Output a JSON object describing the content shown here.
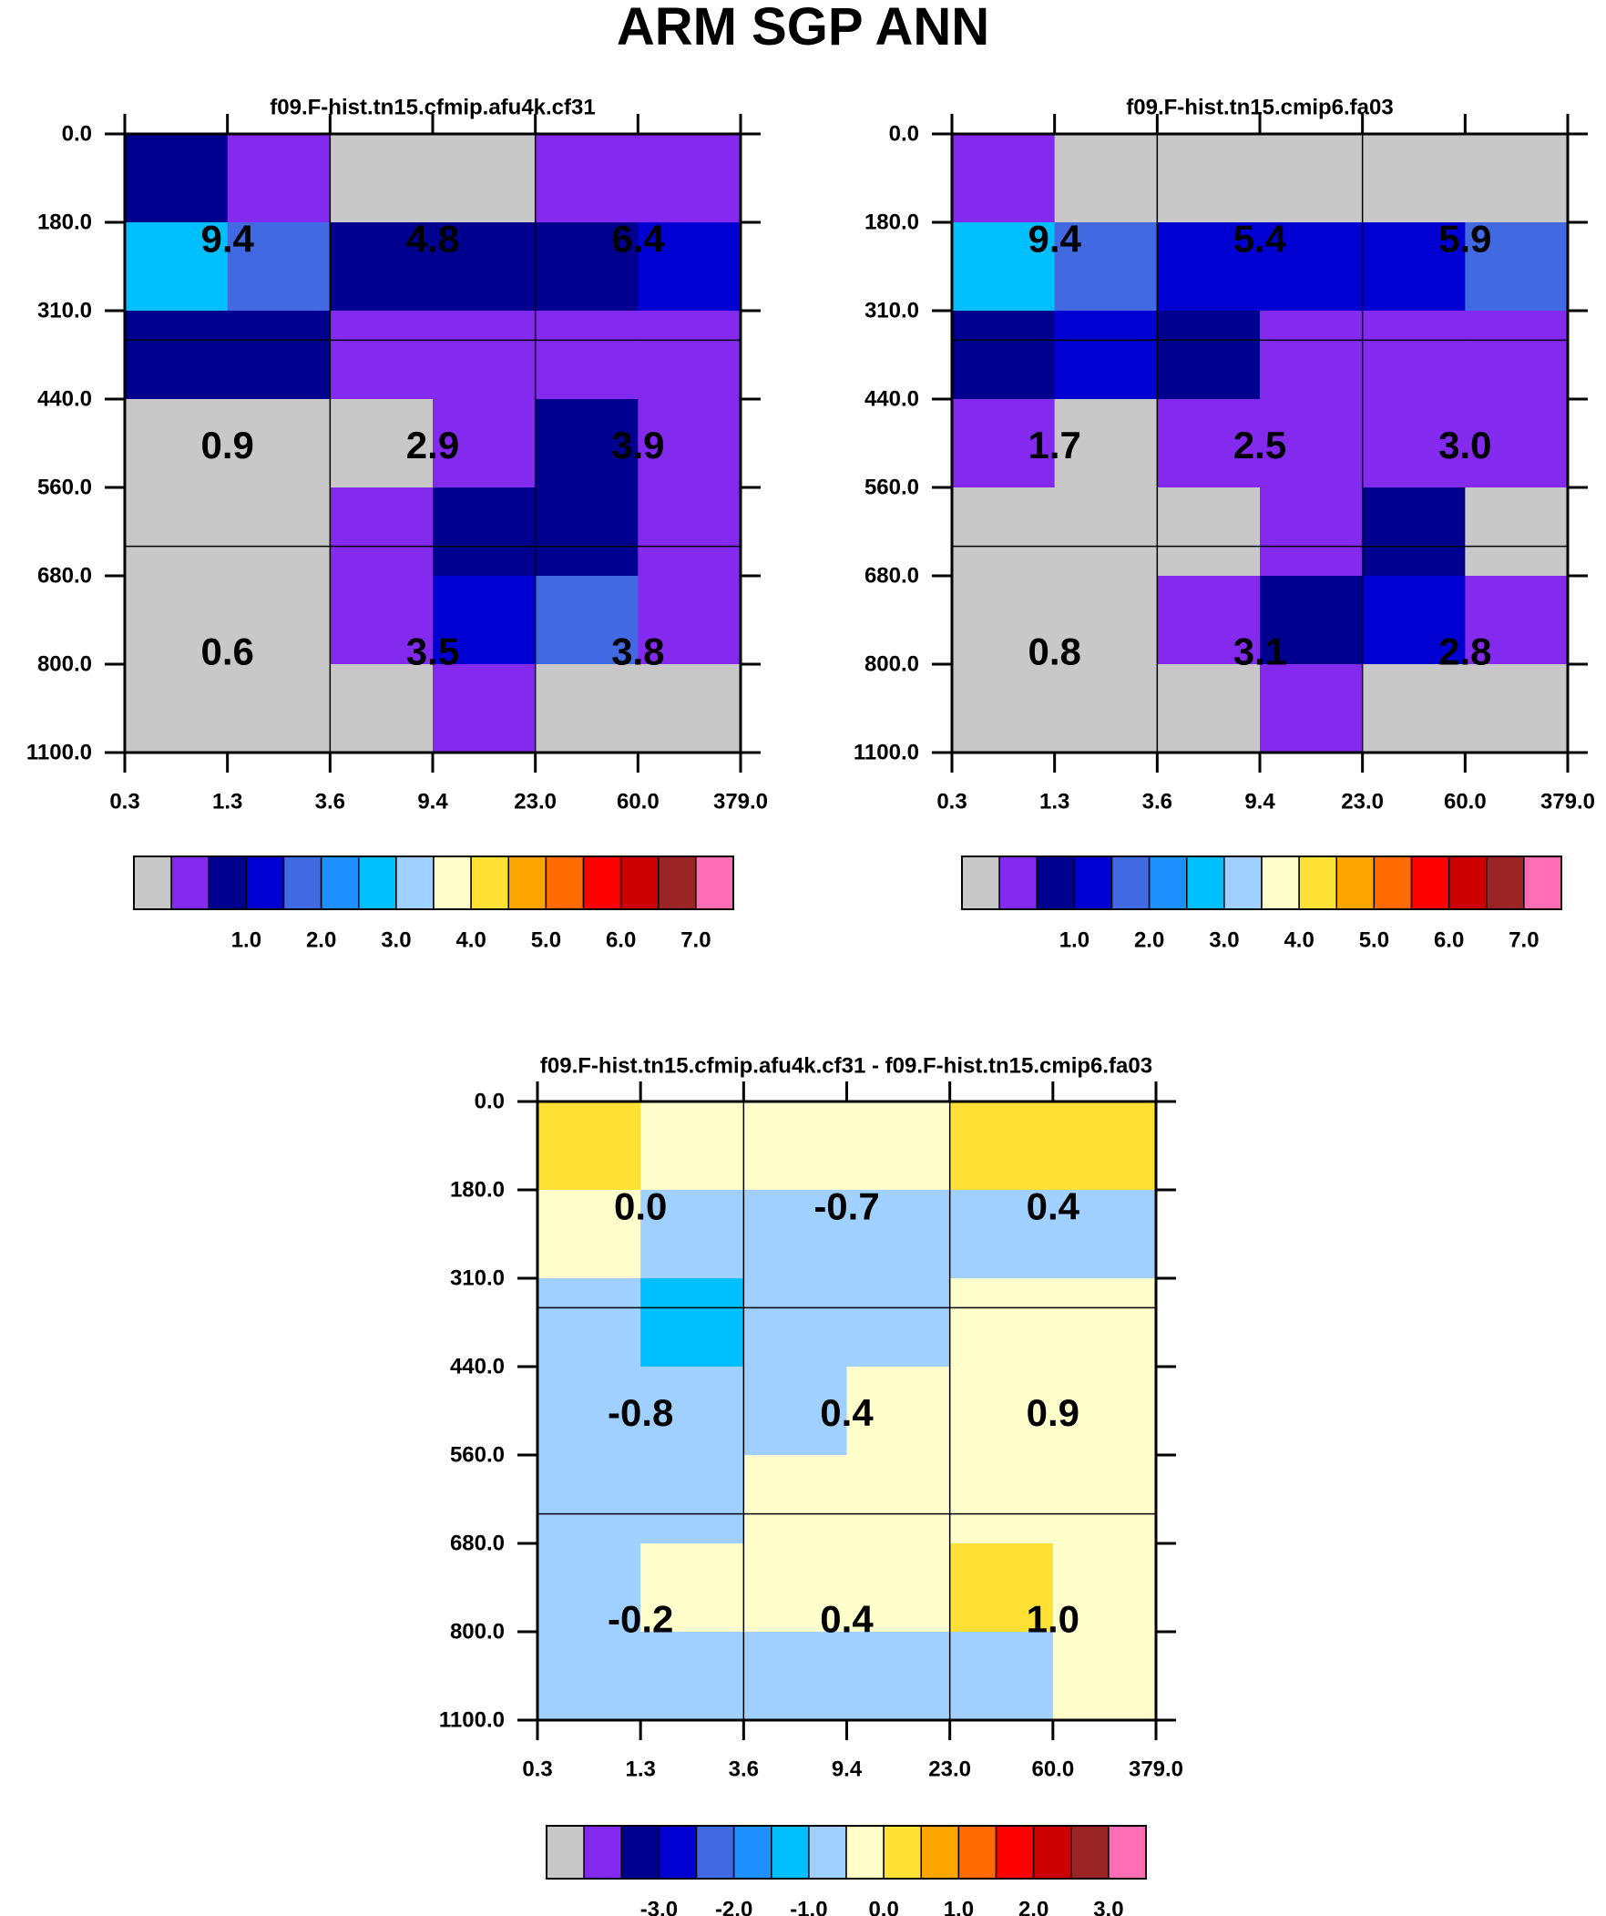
{
  "page": {
    "title": "ARM SGP ANN"
  },
  "palette": {
    "colors": [
      "#c8c8c8",
      "#8429ee",
      "#00008e",
      "#0000d2",
      "#4169e1",
      "#1e90ff",
      "#00bfff",
      "#a0d0ff",
      "#ffffcc",
      "#ffe135",
      "#ffa500",
      "#ff6b00",
      "#ff0000",
      "#cc0000",
      "#9b2424",
      "#ff6eb4"
    ]
  },
  "chart_data": [
    {
      "type": "heatmap",
      "title": "f09.F-hist.tn15.cfmip.afu4k.cf31",
      "x_ticks": [
        "0.3",
        "1.3",
        "3.6",
        "9.4",
        "23.0",
        "60.0",
        "379.0"
      ],
      "y_ticks": [
        "0.0",
        "180.0",
        "310.0",
        "440.0",
        "560.0",
        "680.0",
        "800.0",
        "1100.0"
      ],
      "cell_color_index": [
        [
          2,
          1,
          0,
          0,
          1,
          1
        ],
        [
          6,
          4,
          2,
          2,
          2,
          3
        ],
        [
          2,
          2,
          1,
          1,
          1,
          1
        ],
        [
          0,
          0,
          0,
          1,
          2,
          1
        ],
        [
          0,
          0,
          1,
          2,
          2,
          1
        ],
        [
          0,
          0,
          1,
          3,
          4,
          1
        ],
        [
          0,
          0,
          0,
          1,
          0,
          0
        ]
      ],
      "box_values": [
        [
          "9.4",
          "4.8",
          "6.4"
        ],
        [
          "0.9",
          "2.9",
          "3.9"
        ],
        [
          "0.6",
          "3.5",
          "3.8"
        ]
      ],
      "colorbar_labels": [
        "1.0",
        "2.0",
        "3.0",
        "4.0",
        "5.0",
        "6.0",
        "7.0"
      ]
    },
    {
      "type": "heatmap",
      "title": "f09.F-hist.tn15.cmip6.fa03",
      "x_ticks": [
        "0.3",
        "1.3",
        "3.6",
        "9.4",
        "23.0",
        "60.0",
        "379.0"
      ],
      "y_ticks": [
        "0.0",
        "180.0",
        "310.0",
        "440.0",
        "560.0",
        "680.0",
        "800.0",
        "1100.0"
      ],
      "cell_color_index": [
        [
          1,
          0,
          0,
          0,
          0,
          0
        ],
        [
          6,
          4,
          3,
          3,
          3,
          4
        ],
        [
          2,
          3,
          2,
          1,
          1,
          1
        ],
        [
          1,
          0,
          1,
          1,
          1,
          1
        ],
        [
          0,
          0,
          0,
          1,
          2,
          0
        ],
        [
          0,
          0,
          1,
          2,
          3,
          1
        ],
        [
          0,
          0,
          0,
          1,
          0,
          0
        ]
      ],
      "box_values": [
        [
          "9.4",
          "5.4",
          "5.9"
        ],
        [
          "1.7",
          "2.5",
          "3.0"
        ],
        [
          "0.8",
          "3.1",
          "2.8"
        ]
      ],
      "colorbar_labels": [
        "1.0",
        "2.0",
        "3.0",
        "4.0",
        "5.0",
        "6.0",
        "7.0"
      ]
    },
    {
      "type": "heatmap",
      "title": "f09.F-hist.tn15.cfmip.afu4k.cf31 - f09.F-hist.tn15.cmip6.fa03",
      "x_ticks": [
        "0.3",
        "1.3",
        "3.6",
        "9.4",
        "23.0",
        "60.0",
        "379.0"
      ],
      "y_ticks": [
        "0.0",
        "180.0",
        "310.0",
        "440.0",
        "560.0",
        "680.0",
        "800.0",
        "1100.0"
      ],
      "cell_color_index": [
        [
          9,
          8,
          8,
          8,
          9,
          9
        ],
        [
          8,
          7,
          7,
          7,
          7,
          7
        ],
        [
          7,
          6,
          7,
          7,
          8,
          8
        ],
        [
          7,
          7,
          7,
          8,
          8,
          8
        ],
        [
          7,
          7,
          8,
          8,
          8,
          8
        ],
        [
          7,
          8,
          8,
          8,
          9,
          8
        ],
        [
          7,
          7,
          7,
          7,
          7,
          8
        ]
      ],
      "box_values": [
        [
          "0.0",
          "-0.7",
          "0.4"
        ],
        [
          "-0.8",
          "0.4",
          "0.9"
        ],
        [
          "-0.2",
          "0.4",
          "1.0"
        ]
      ],
      "colorbar_labels": [
        "-3.0",
        "-2.0",
        "-1.0",
        "0.0",
        "1.0",
        "2.0",
        "3.0"
      ]
    }
  ]
}
